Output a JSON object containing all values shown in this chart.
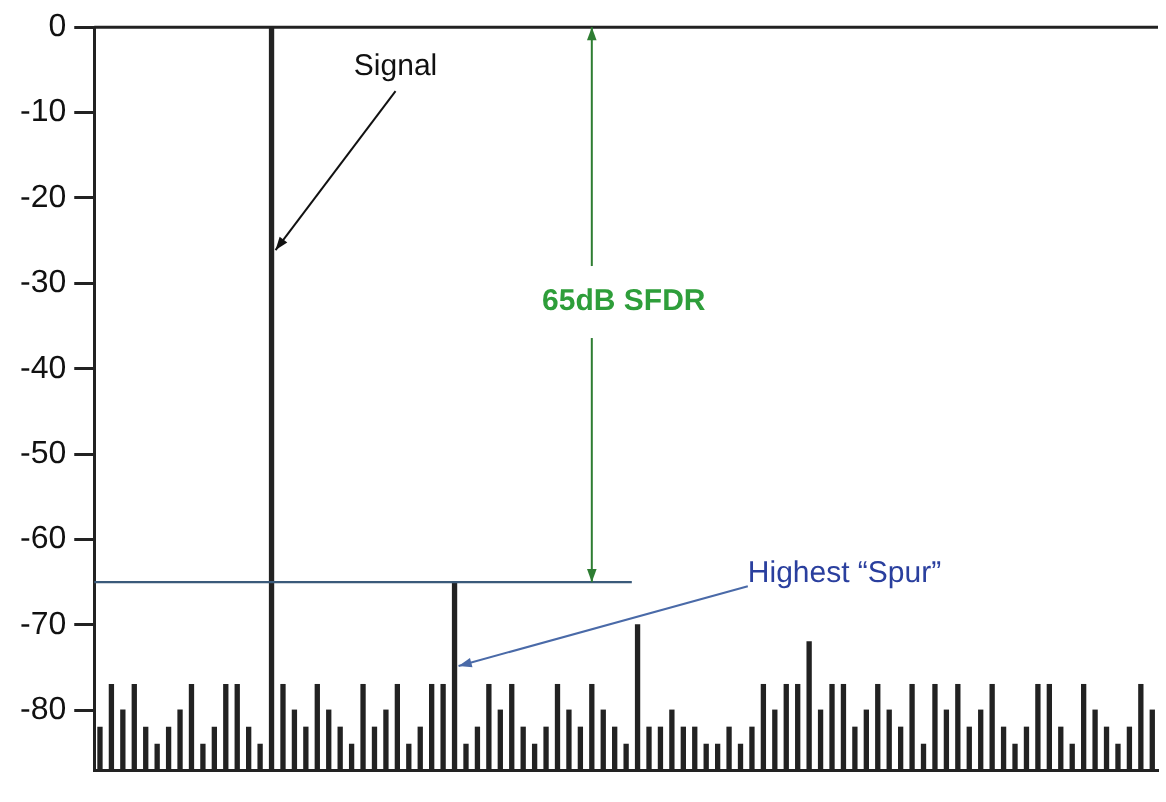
{
  "chart_data": {
    "type": "bar",
    "categories": [
      null,
      null,
      null,
      null,
      null,
      null,
      null,
      null,
      null,
      null,
      null,
      null,
      null,
      null,
      null,
      null,
      null,
      null,
      null,
      null,
      null,
      null,
      null,
      null,
      null,
      null,
      null,
      null,
      null,
      null,
      null,
      null,
      null,
      null,
      null,
      null,
      null,
      null,
      null,
      null,
      null,
      null,
      null,
      null,
      null,
      null,
      null,
      null,
      null,
      null,
      null,
      null,
      null,
      null,
      null,
      null,
      null,
      null,
      null,
      null,
      null,
      null,
      null,
      null,
      null,
      null,
      null,
      null,
      null,
      null,
      null,
      null,
      null,
      null,
      null,
      null,
      null,
      null,
      null,
      null,
      null,
      null,
      null,
      null,
      null,
      null,
      null,
      null,
      null,
      null,
      null,
      null,
      null
    ],
    "base": [
      -87,
      -87,
      -87,
      -87,
      -87,
      -87,
      -87,
      -87,
      -87,
      -87,
      -87,
      -87,
      -87,
      -87,
      -87,
      -87,
      -87,
      -87,
      -87,
      -87,
      -87,
      -87,
      -87,
      -87,
      -87,
      -87,
      -87,
      -87,
      -87,
      -87,
      -87,
      -87,
      -87,
      -87,
      -87,
      -87,
      -87,
      -87,
      -87,
      -87,
      -87,
      -87,
      -87,
      -87,
      -87,
      -87,
      -87,
      -87,
      -87,
      -87,
      -87,
      -87,
      -87,
      -87,
      -87,
      -87,
      -87,
      -87,
      -87,
      -87,
      -87,
      -87,
      -87,
      -87,
      -87,
      -87,
      -87,
      -87,
      -87,
      -87,
      -87,
      -87,
      -87,
      -87,
      -87,
      -87,
      -87,
      -87,
      -87,
      -87,
      -87,
      -87,
      -87,
      -87,
      -87,
      -87,
      -87,
      -87,
      -87,
      -87,
      -87,
      -87,
      -87
    ],
    "values": [
      5,
      10,
      7,
      10,
      5,
      3,
      5,
      7,
      10,
      3,
      5,
      10,
      10,
      5,
      3,
      87,
      10,
      7,
      5,
      10,
      7,
      5,
      3,
      10,
      5,
      7,
      10,
      3,
      5,
      10,
      10,
      22,
      3,
      5,
      10,
      7,
      10,
      5,
      3,
      5,
      10,
      7,
      5,
      10,
      7,
      5,
      3,
      17,
      5,
      5,
      7,
      5,
      5,
      3,
      3,
      5,
      3,
      5,
      10,
      7,
      10,
      10,
      15,
      7,
      10,
      10,
      5,
      7,
      10,
      7,
      5,
      10,
      3,
      10,
      7,
      10,
      5,
      7,
      10,
      5,
      3,
      5,
      10,
      10,
      5,
      3,
      10,
      7,
      5,
      3,
      5,
      10,
      7
    ],
    "color": "#222222",
    "ylim": [
      -87,
      0
    ],
    "yticks": [
      0,
      -10,
      -20,
      -30,
      -40,
      -50,
      -60,
      -70,
      -80
    ],
    "tick_labels": "y",
    "grid": false,
    "legend": false,
    "ref_lines": [
      {
        "axis": "y",
        "value": -65,
        "color": "#3a5a7a"
      }
    ],
    "annotations": [
      "Signal",
      "65dB SFDR",
      "Highest “Spur”"
    ]
  }
}
